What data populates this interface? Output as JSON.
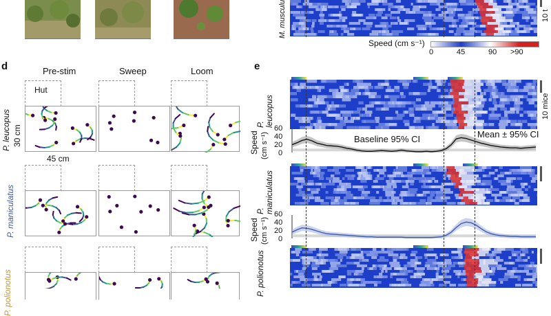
{
  "panel_d": {
    "letter": "d",
    "columns": [
      "Pre-stim",
      "Sweep",
      "Loom"
    ],
    "hut_label": "Hut",
    "dim_vertical": "30 cm",
    "dim_horizontal": "45 cm",
    "species": [
      "P. leucopus",
      "P. maniculatus",
      "P. polionotus"
    ]
  },
  "panel_e": {
    "letter": "e",
    "top_heatmap_species": "M. musculus",
    "heatmap_species": [
      "P. leucopus",
      "P. maniculatus",
      "P. polionotus"
    ],
    "scale_label_top": "10 t",
    "scale_label": "10 mice",
    "colorbar": {
      "title": "Speed (cm s⁻¹)",
      "ticks": [
        "0",
        "45",
        "90",
        ">90"
      ]
    },
    "speed_axis_label": "Speed",
    "speed_axis_unit": "(cm s⁻¹)",
    "speed_ticks": [
      "60",
      "40",
      "20",
      "0"
    ],
    "annot_baseline": "Baseline 95% CI",
    "annot_mean": "Mean ± 95% CI"
  },
  "colors": {
    "heat_bg": "#1d3ec9",
    "leucopus_trace": "#111111",
    "maniculatus_trace": "#3f5aa8",
    "leucopus_label": "#111111",
    "maniculatus_label": "#3f5aa8",
    "polionotus_label": "#c8963a"
  },
  "chart_data": [
    {
      "type": "line",
      "name_on_plot": "Baseline 95% CI",
      "ylabel": "Speed (cm s⁻¹)",
      "ylim": [
        0,
        60
      ],
      "yticks": [
        0,
        20,
        40,
        60
      ],
      "series": [
        {
          "name": "Mean ± 95% CI",
          "values": [
            20,
            25,
            31,
            34,
            30,
            24,
            21,
            18,
            17,
            16,
            14,
            11,
            9,
            6,
            4,
            3,
            3,
            4,
            5,
            4,
            3,
            4,
            6,
            4,
            3,
            2,
            2,
            3,
            2,
            3,
            5,
            10,
            20,
            35,
            38,
            36,
            32,
            28,
            24,
            21,
            18,
            16,
            14,
            13,
            12,
            12,
            11,
            12,
            13,
            14
          ]
        }
      ]
    },
    {
      "type": "line",
      "ylabel": "Speed (cm s⁻¹)",
      "ylim": [
        0,
        60
      ],
      "yticks": [
        0,
        20,
        40,
        60
      ],
      "series": [
        {
          "values": [
            16,
            22,
            27,
            26,
            23,
            19,
            15,
            12,
            11,
            10,
            9,
            8,
            7,
            6,
            5,
            4,
            4,
            3,
            3,
            3,
            3,
            3,
            3,
            2,
            2,
            2,
            2,
            2,
            2,
            3,
            4,
            8,
            16,
            28,
            38,
            42,
            40,
            34,
            25,
            17,
            12,
            9,
            7,
            6,
            5,
            5,
            4,
            4,
            4,
            4
          ]
        }
      ]
    }
  ]
}
